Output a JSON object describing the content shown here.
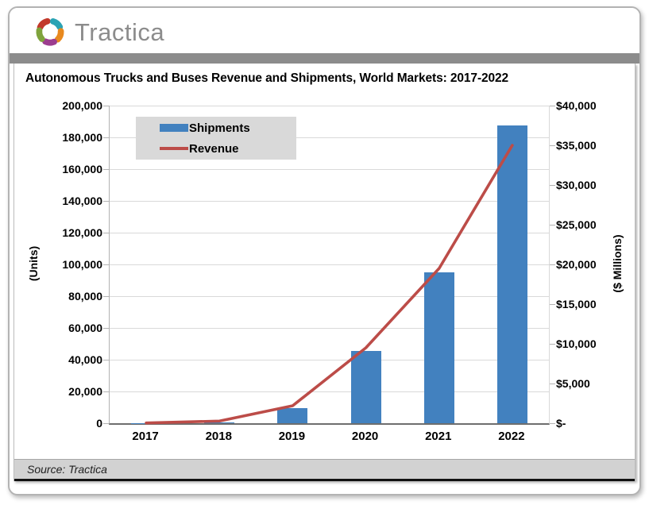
{
  "header": {
    "logo_text": "Tractica"
  },
  "title": "Autonomous Trucks and Buses Revenue and Shipments, World Markets: 2017-2022",
  "footer": {
    "source": "Source: Tractica"
  },
  "colors": {
    "bar_blue": "#4281bf",
    "line_red": "#bc4c48",
    "divider_gray": "#8c8c8c",
    "grid_gray": "#d9d9d9",
    "legend_bg": "#d9d9d9",
    "source_bg": "#d2d2d2",
    "logo_text_gray": "#8c8c8c"
  },
  "chart_data": {
    "type": "combo (bar + line, dual axis)",
    "title": "Autonomous Trucks and Buses Revenue and Shipments, World Markets: 2017-2022",
    "categories": [
      "2017",
      "2018",
      "2019",
      "2020",
      "2021",
      "2022"
    ],
    "series": [
      {
        "name": "Shipments",
        "type": "bar",
        "axis": "left",
        "color": "#4281bf",
        "values": [
          100,
          500,
          9500,
          45500,
          95000,
          187500
        ]
      },
      {
        "name": "Revenue",
        "type": "line",
        "axis": "right",
        "color": "#bc4c48",
        "values": [
          30,
          270,
          2200,
          9500,
          19500,
          35000
        ]
      }
    ],
    "left_axis": {
      "label": "(Units)",
      "min": 0,
      "max": 200000,
      "step": 20000,
      "ticks": [
        "200,000",
        "180,000",
        "160,000",
        "140,000",
        "120,000",
        "100,000",
        "80,000",
        "60,000",
        "40,000",
        "20,000",
        "0"
      ]
    },
    "right_axis": {
      "label": "($ Millions)",
      "min": 0,
      "max": 40000,
      "step": 5000,
      "ticks": [
        "$40,000",
        "$35,000",
        "$30,000",
        "$25,000",
        "$20,000",
        "$15,000",
        "$10,000",
        "$5,000",
        "$-"
      ]
    },
    "legend": {
      "position": "top-left",
      "entries": [
        {
          "label": "Shipments",
          "swatch": "bar"
        },
        {
          "label": "Revenue",
          "swatch": "line"
        }
      ]
    },
    "grid": true
  }
}
